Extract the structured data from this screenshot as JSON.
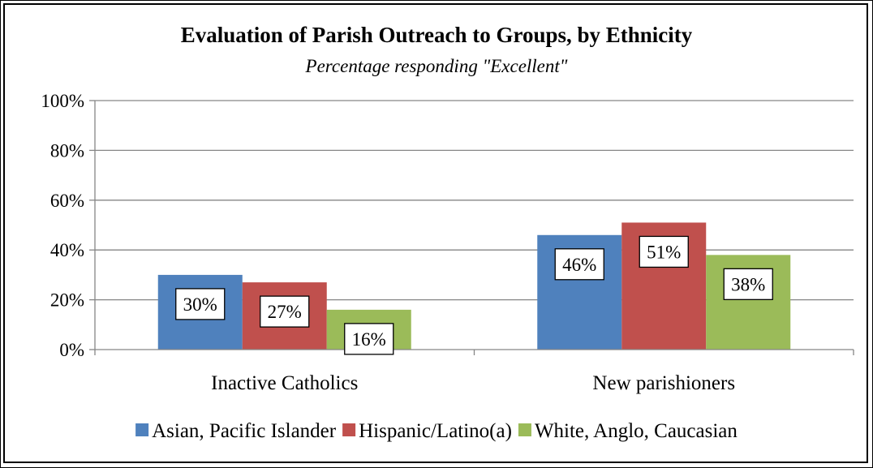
{
  "chart_data": {
    "type": "bar",
    "title": "Evaluation of Parish Outreach to Groups, by Ethnicity",
    "subtitle": "Percentage responding \"Excellent\"",
    "categories": [
      "Inactive Catholics",
      "New parishioners"
    ],
    "series": [
      {
        "name": "Asian, Pacific Islander",
        "color": "#4f81bd",
        "values": [
          30,
          46
        ],
        "labels": [
          "30%",
          "46%"
        ]
      },
      {
        "name": "Hispanic/Latino(a)",
        "color": "#c0504d",
        "values": [
          27,
          51
        ],
        "labels": [
          "27%",
          "51%"
        ]
      },
      {
        "name": "White, Anglo, Caucasian",
        "color": "#9bbb59",
        "values": [
          16,
          38
        ],
        "labels": [
          "16%",
          "38%"
        ]
      }
    ],
    "ylim": [
      0,
      100
    ],
    "yticks": [
      0,
      20,
      40,
      60,
      80,
      100
    ],
    "ytick_labels": [
      "0%",
      "20%",
      "40%",
      "60%",
      "80%",
      "100%"
    ],
    "grid": true,
    "legend_position": "bottom",
    "xlabel": "",
    "ylabel": ""
  }
}
